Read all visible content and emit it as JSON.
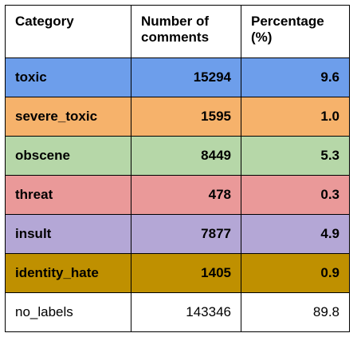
{
  "table": {
    "headers": [
      "Category",
      "Number of comments",
      "Percentage (%)"
    ],
    "rows": [
      {
        "category": "toxic",
        "count": "15294",
        "percentage": "9.6",
        "color": "#6d9eeb"
      },
      {
        "category": "severe_toxic",
        "count": "1595",
        "percentage": "1.0",
        "color": "#f6b26b"
      },
      {
        "category": "obscene",
        "count": "8449",
        "percentage": "5.3",
        "color": "#b6d7a8"
      },
      {
        "category": "threat",
        "count": "478",
        "percentage": "0.3",
        "color": "#ea9999"
      },
      {
        "category": "insult",
        "count": "7877",
        "percentage": "4.9",
        "color": "#b4a7d6"
      },
      {
        "category": "identity_hate",
        "count": "1405",
        "percentage": "0.9",
        "color": "#bf9000"
      },
      {
        "category": "no_labels",
        "count": "143346",
        "percentage": "89.8",
        "color": "#ffffff"
      }
    ]
  }
}
